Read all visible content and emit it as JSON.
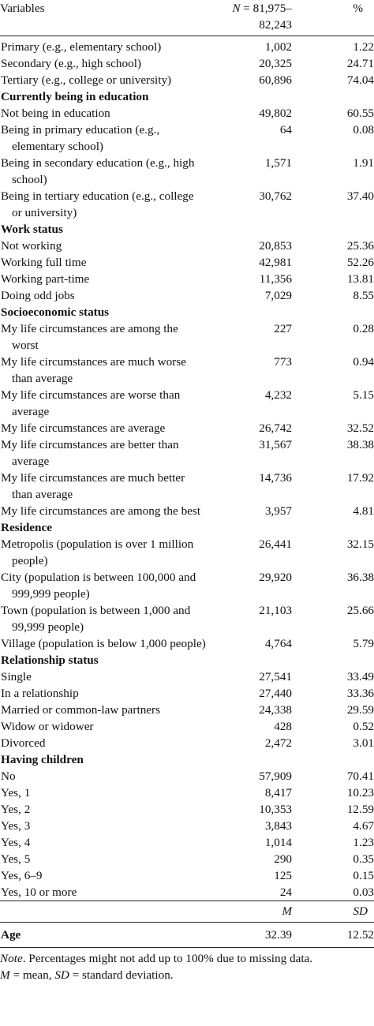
{
  "header": {
    "col1": "Variables",
    "col2_n": "N",
    "col2_rest": " = 81,975–82,243",
    "col3": "%"
  },
  "rows": [
    {
      "type": "row",
      "label": "Primary (e.g., elementary school)",
      "n": "1,002",
      "pct": "1.22"
    },
    {
      "type": "row",
      "label": "Secondary (e.g., high school)",
      "n": "20,325",
      "pct": "24.71"
    },
    {
      "type": "row",
      "label": "Tertiary (e.g., college or university)",
      "n": "60,896",
      "pct": "74.04"
    },
    {
      "type": "section",
      "label": "Currently being in education"
    },
    {
      "type": "row",
      "label": "Not being in education",
      "n": "49,802",
      "pct": "60.55"
    },
    {
      "type": "row",
      "label": "Being in primary education (e.g., elementary school)",
      "n": "64",
      "pct": "0.08"
    },
    {
      "type": "row",
      "label": "Being in secondary education (e.g., high school)",
      "n": "1,571",
      "pct": "1.91"
    },
    {
      "type": "row",
      "label": "Being in tertiary education (e.g., college or university)",
      "n": "30,762",
      "pct": "37.40"
    },
    {
      "type": "section",
      "label": "Work status"
    },
    {
      "type": "row",
      "label": "Not working",
      "n": "20,853",
      "pct": "25.36"
    },
    {
      "type": "row",
      "label": "Working full time",
      "n": "42,981",
      "pct": "52.26"
    },
    {
      "type": "row",
      "label": "Working part-time",
      "n": "11,356",
      "pct": "13.81"
    },
    {
      "type": "row",
      "label": "Doing odd jobs",
      "n": "7,029",
      "pct": "8.55"
    },
    {
      "type": "section",
      "label": "Socioeconomic status"
    },
    {
      "type": "row",
      "label": "My life circumstances are among the worst",
      "n": "227",
      "pct": "0.28"
    },
    {
      "type": "row",
      "label": "My life circumstances are much worse than average",
      "n": "773",
      "pct": "0.94"
    },
    {
      "type": "row",
      "label": "My life circumstances are worse than average",
      "n": "4,232",
      "pct": "5.15"
    },
    {
      "type": "row",
      "label": "My life circumstances are average",
      "n": "26,742",
      "pct": "32.52"
    },
    {
      "type": "row",
      "label": "My life circumstances are better than average",
      "n": "31,567",
      "pct": "38.38"
    },
    {
      "type": "row",
      "label": "My life circumstances are much better than average",
      "n": "14,736",
      "pct": "17.92"
    },
    {
      "type": "row",
      "label": "My life circumstances are among the best",
      "n": "3,957",
      "pct": "4.81"
    },
    {
      "type": "section",
      "label": "Residence"
    },
    {
      "type": "row",
      "label": "Metropolis (population is over 1 million people)",
      "n": "26,441",
      "pct": "32.15"
    },
    {
      "type": "row",
      "label": "City (population is between 100,000 and 999,999 people)",
      "n": "29,920",
      "pct": "36.38"
    },
    {
      "type": "row",
      "label": "Town (population is between 1,000 and 99,999 people)",
      "n": "21,103",
      "pct": "25.66"
    },
    {
      "type": "row",
      "label": "Village (population is below 1,000 people)",
      "n": "4,764",
      "pct": "5.79"
    },
    {
      "type": "section",
      "label": "Relationship status"
    },
    {
      "type": "row",
      "label": "Single",
      "n": "27,541",
      "pct": "33.49"
    },
    {
      "type": "row",
      "label": "In a relationship",
      "n": "27,440",
      "pct": "33.36"
    },
    {
      "type": "row",
      "label": "Married or common-law partners",
      "n": "24,338",
      "pct": "29.59"
    },
    {
      "type": "row",
      "label": "Widow or widower",
      "n": "428",
      "pct": "0.52"
    },
    {
      "type": "row",
      "label": "Divorced",
      "n": "2,472",
      "pct": "3.01"
    },
    {
      "type": "section",
      "label": "Having children"
    },
    {
      "type": "row",
      "label": "No",
      "n": "57,909",
      "pct": "70.41"
    },
    {
      "type": "row",
      "label": "Yes, 1",
      "n": "8,417",
      "pct": "10.23"
    },
    {
      "type": "row",
      "label": "Yes, 2",
      "n": "10,353",
      "pct": "12.59"
    },
    {
      "type": "row",
      "label": "Yes, 3",
      "n": "3,843",
      "pct": "4.67"
    },
    {
      "type": "row",
      "label": "Yes, 4",
      "n": "1,014",
      "pct": "1.23"
    },
    {
      "type": "row",
      "label": "Yes, 5",
      "n": "290",
      "pct": "0.35"
    },
    {
      "type": "row",
      "label": "Yes, 6–9",
      "n": "125",
      "pct": "0.15"
    },
    {
      "type": "row",
      "label": "Yes, 10 or more",
      "n": "24",
      "pct": "0.03"
    }
  ],
  "stats_header": {
    "m": "M",
    "sd": "SD"
  },
  "age": {
    "label": "Age",
    "m": "32.39",
    "sd": "12.52"
  },
  "note": {
    "line1_prefix": "Note",
    "line1_rest": ". Percentages might not add up to 100% due to missing data.",
    "m_abbr": "M",
    "m_text": " = mean, ",
    "sd_abbr": "SD",
    "sd_text": " = standard deviation."
  }
}
